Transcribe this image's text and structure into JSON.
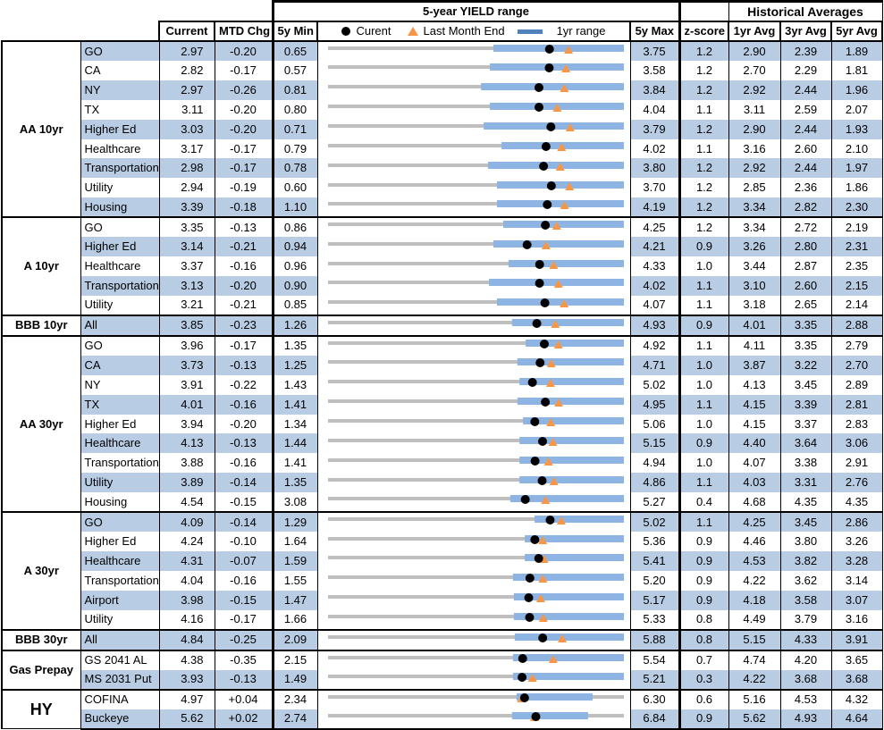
{
  "header": {
    "title": "5-year YIELD range",
    "hist": "Historical Averages",
    "current": "Current",
    "mtd": "MTD Chg",
    "min5": "5y Min",
    "max5": "5y Max",
    "z": "z-score",
    "avg1": "1yr Avg",
    "avg3": "3yr Avg",
    "avg5": "5yr Avg",
    "legend": {
      "current": "Curent",
      "last": "Last Month End",
      "range": "1yr range"
    }
  },
  "colors": {
    "shade": "#b8cce4",
    "grey_line": "#bfbfbf",
    "range_bar": "#8db4e2",
    "current": "#000000",
    "last_month": "#f79646"
  },
  "chart_data": {
    "type": "range-dot",
    "title": "5-year YIELD range",
    "series": [
      "Current",
      "Last Month End (Current - MTD Chg)",
      "1yr range (fraction of 5y range)"
    ],
    "groups": [
      {
        "label": "AA 10yr",
        "rows": [
          {
            "name": "GO",
            "current": "2.97",
            "mtd": "-0.20",
            "min5": "0.65",
            "max5": "3.75",
            "z": "1.2",
            "avg1": "2.90",
            "avg3": "2.39",
            "avg5": "1.89",
            "r1": [
              0.559,
              1
            ]
          },
          {
            "name": "CA",
            "current": "2.82",
            "mtd": "-0.17",
            "min5": "0.57",
            "max5": "3.58",
            "z": "1.2",
            "avg1": "2.70",
            "avg3": "2.29",
            "avg5": "1.81",
            "r1": [
              0.547,
              1
            ]
          },
          {
            "name": "NY",
            "current": "2.97",
            "mtd": "-0.26",
            "min5": "0.81",
            "max5": "3.84",
            "z": "1.2",
            "avg1": "2.92",
            "avg3": "2.44",
            "avg5": "1.96",
            "r1": [
              0.517,
              1
            ]
          },
          {
            "name": "TX",
            "current": "3.11",
            "mtd": "-0.20",
            "min5": "0.80",
            "max5": "4.04",
            "z": "1.1",
            "avg1": "3.11",
            "avg3": "2.59",
            "avg5": "2.07",
            "r1": [
              0.547,
              1
            ]
          },
          {
            "name": "Higher Ed",
            "current": "3.03",
            "mtd": "-0.20",
            "min5": "0.71",
            "max5": "3.79",
            "z": "1.2",
            "avg1": "2.90",
            "avg3": "2.44",
            "avg5": "1.93",
            "r1": [
              0.526,
              1
            ]
          },
          {
            "name": "Healthcare",
            "current": "3.17",
            "mtd": "-0.17",
            "min5": "0.79",
            "max5": "4.02",
            "z": "1.1",
            "avg1": "3.16",
            "avg3": "2.60",
            "avg5": "2.10",
            "r1": [
              0.586,
              1
            ]
          },
          {
            "name": "Transportation",
            "current": "2.98",
            "mtd": "-0.17",
            "min5": "0.78",
            "max5": "3.80",
            "z": "1.2",
            "avg1": "2.92",
            "avg3": "2.44",
            "avg5": "1.97",
            "r1": [
              0.541,
              1
            ]
          },
          {
            "name": "Utility",
            "current": "2.94",
            "mtd": "-0.19",
            "min5": "0.60",
            "max5": "3.70",
            "z": "1.2",
            "avg1": "2.85",
            "avg3": "2.36",
            "avg5": "1.86",
            "r1": [
              0.571,
              1
            ]
          },
          {
            "name": "Housing",
            "current": "3.39",
            "mtd": "-0.18",
            "min5": "1.10",
            "max5": "4.19",
            "z": "1.2",
            "avg1": "3.34",
            "avg3": "2.82",
            "avg5": "2.30",
            "r1": [
              0.571,
              1
            ]
          }
        ]
      },
      {
        "label": "A 10yr",
        "rows": [
          {
            "name": "GO",
            "current": "3.35",
            "mtd": "-0.13",
            "min5": "0.86",
            "max5": "4.25",
            "z": "1.2",
            "avg1": "3.34",
            "avg3": "2.72",
            "avg5": "2.19",
            "r1": [
              0.592,
              1
            ]
          },
          {
            "name": "Higher Ed",
            "current": "3.14",
            "mtd": "-0.21",
            "min5": "0.94",
            "max5": "4.21",
            "z": "0.9",
            "avg1": "3.26",
            "avg3": "2.80",
            "avg5": "2.31",
            "r1": [
              0.559,
              1
            ]
          },
          {
            "name": "Healthcare",
            "current": "3.37",
            "mtd": "-0.16",
            "min5": "0.96",
            "max5": "4.33",
            "z": "1.0",
            "avg1": "3.44",
            "avg3": "2.87",
            "avg5": "2.35",
            "r1": [
              0.61,
              1
            ]
          },
          {
            "name": "Transportation",
            "current": "3.13",
            "mtd": "-0.20",
            "min5": "0.90",
            "max5": "4.02",
            "z": "1.1",
            "avg1": "3.10",
            "avg3": "2.60",
            "avg5": "2.15",
            "r1": [
              0.544,
              1
            ]
          },
          {
            "name": "Utility",
            "current": "3.21",
            "mtd": "-0.21",
            "min5": "0.85",
            "max5": "4.07",
            "z": "1.1",
            "avg1": "3.18",
            "avg3": "2.65",
            "avg5": "2.14",
            "r1": [
              0.571,
              1
            ]
          }
        ]
      },
      {
        "label": "BBB 10yr",
        "rows": [
          {
            "name": "All",
            "current": "3.85",
            "mtd": "-0.23",
            "min5": "1.26",
            "max5": "4.93",
            "z": "0.9",
            "avg1": "4.01",
            "avg3": "3.35",
            "avg5": "2.88",
            "r1": [
              0.622,
              1
            ]
          }
        ]
      },
      {
        "label": "AA 30yr",
        "rows": [
          {
            "name": "GO",
            "current": "3.96",
            "mtd": "-0.17",
            "min5": "1.35",
            "max5": "4.92",
            "z": "1.1",
            "avg1": "4.11",
            "avg3": "3.35",
            "avg5": "2.79",
            "r1": [
              0.668,
              1
            ]
          },
          {
            "name": "CA",
            "current": "3.73",
            "mtd": "-0.13",
            "min5": "1.25",
            "max5": "4.71",
            "z": "1.0",
            "avg1": "3.87",
            "avg3": "3.22",
            "avg5": "2.70",
            "r1": [
              0.64,
              1
            ]
          },
          {
            "name": "NY",
            "current": "3.91",
            "mtd": "-0.22",
            "min5": "1.43",
            "max5": "5.02",
            "z": "1.0",
            "avg1": "4.13",
            "avg3": "3.45",
            "avg5": "2.89",
            "r1": [
              0.647,
              1
            ]
          },
          {
            "name": "TX",
            "current": "4.01",
            "mtd": "-0.16",
            "min5": "1.41",
            "max5": "4.95",
            "z": "1.1",
            "avg1": "4.15",
            "avg3": "3.39",
            "avg5": "2.81",
            "r1": [
              0.64,
              1
            ]
          },
          {
            "name": "Higher Ed",
            "current": "3.94",
            "mtd": "-0.20",
            "min5": "1.34",
            "max5": "5.06",
            "z": "1.0",
            "avg1": "4.15",
            "avg3": "3.37",
            "avg5": "2.83",
            "r1": [
              0.659,
              1
            ]
          },
          {
            "name": "Healthcare",
            "current": "4.13",
            "mtd": "-0.13",
            "min5": "1.44",
            "max5": "5.15",
            "z": "0.9",
            "avg1": "4.40",
            "avg3": "3.64",
            "avg5": "3.06",
            "r1": [
              0.647,
              1
            ]
          },
          {
            "name": "Transportation",
            "current": "3.88",
            "mtd": "-0.16",
            "min5": "1.41",
            "max5": "4.94",
            "z": "1.0",
            "avg1": "4.07",
            "avg3": "3.38",
            "avg5": "2.91",
            "r1": [
              0.647,
              1
            ]
          },
          {
            "name": "Utility",
            "current": "3.89",
            "mtd": "-0.14",
            "min5": "1.35",
            "max5": "4.86",
            "z": "1.1",
            "avg1": "4.03",
            "avg3": "3.31",
            "avg5": "2.76",
            "r1": [
              0.647,
              1
            ]
          },
          {
            "name": "Housing",
            "current": "4.54",
            "mtd": "-0.15",
            "min5": "3.08",
            "max5": "5.27",
            "z": "0.4",
            "avg1": "4.68",
            "avg3": "4.35",
            "avg5": "4.35",
            "r1": [
              0.616,
              1
            ]
          }
        ]
      },
      {
        "label": "A 30yr",
        "rows": [
          {
            "name": "GO",
            "current": "4.09",
            "mtd": "-0.14",
            "min5": "1.29",
            "max5": "5.02",
            "z": "1.1",
            "avg1": "4.25",
            "avg3": "3.45",
            "avg5": "2.86",
            "r1": [
              0.698,
              1
            ]
          },
          {
            "name": "Higher Ed",
            "current": "4.24",
            "mtd": "-0.10",
            "min5": "1.64",
            "max5": "5.36",
            "z": "0.9",
            "avg1": "4.46",
            "avg3": "3.80",
            "avg5": "3.26",
            "r1": [
              0.665,
              1
            ]
          },
          {
            "name": "Healthcare",
            "current": "4.31",
            "mtd": "-0.07",
            "min5": "1.59",
            "max5": "5.41",
            "z": "0.9",
            "avg1": "4.53",
            "avg3": "3.82",
            "avg5": "3.28",
            "r1": [
              0.665,
              1
            ]
          },
          {
            "name": "Transportation",
            "current": "4.04",
            "mtd": "-0.16",
            "min5": "1.55",
            "max5": "5.20",
            "z": "0.9",
            "avg1": "4.22",
            "avg3": "3.62",
            "avg5": "3.14",
            "r1": [
              0.625,
              1
            ]
          },
          {
            "name": "Airport",
            "current": "3.98",
            "mtd": "-0.15",
            "min5": "1.47",
            "max5": "5.17",
            "z": "0.9",
            "avg1": "4.18",
            "avg3": "3.58",
            "avg5": "3.07",
            "r1": [
              0.628,
              1
            ]
          },
          {
            "name": "Utility",
            "current": "4.16",
            "mtd": "-0.17",
            "min5": "1.66",
            "max5": "5.33",
            "z": "0.8",
            "avg1": "4.49",
            "avg3": "3.79",
            "avg5": "3.16",
            "r1": [
              0.628,
              1
            ]
          }
        ]
      },
      {
        "label": "BBB 30yr",
        "rows": [
          {
            "name": "All",
            "current": "4.84",
            "mtd": "-0.25",
            "min5": "2.09",
            "max5": "5.88",
            "z": "0.8",
            "avg1": "5.15",
            "avg3": "4.33",
            "avg5": "3.91",
            "r1": [
              0.631,
              1
            ]
          }
        ]
      },
      {
        "label": "Gas Prepay",
        "rows": [
          {
            "name": "GS 2041 AL",
            "current": "4.38",
            "mtd": "-0.35",
            "min5": "2.15",
            "max5": "5.54",
            "z": "0.7",
            "avg1": "4.74",
            "avg3": "4.20",
            "avg5": "3.65",
            "r1": [
              0.625,
              1
            ]
          },
          {
            "name": "MS 2031 Put",
            "current": "3.93",
            "mtd": "-0.13",
            "min5": "1.49",
            "max5": "5.21",
            "z": "0.3",
            "avg1": "4.22",
            "avg3": "3.68",
            "avg5": "3.68",
            "r1": [
              0.625,
              1
            ]
          }
        ]
      },
      {
        "label": "HY",
        "rows": [
          {
            "name": "COFINA",
            "current": "4.97",
            "mtd": "+0.04",
            "min5": "2.34",
            "max5": "6.30",
            "z": "0.6",
            "avg1": "5.16",
            "avg3": "4.53",
            "avg5": "4.32",
            "r1": [
              0.637,
              0.894
            ]
          },
          {
            "name": "Buckeye",
            "current": "5.62",
            "mtd": "+0.02",
            "min5": "2.74",
            "max5": "6.84",
            "z": "0.9",
            "avg1": "5.62",
            "avg3": "4.93",
            "avg5": "4.64",
            "r1": [
              0.622,
              0.879
            ]
          }
        ]
      }
    ]
  }
}
